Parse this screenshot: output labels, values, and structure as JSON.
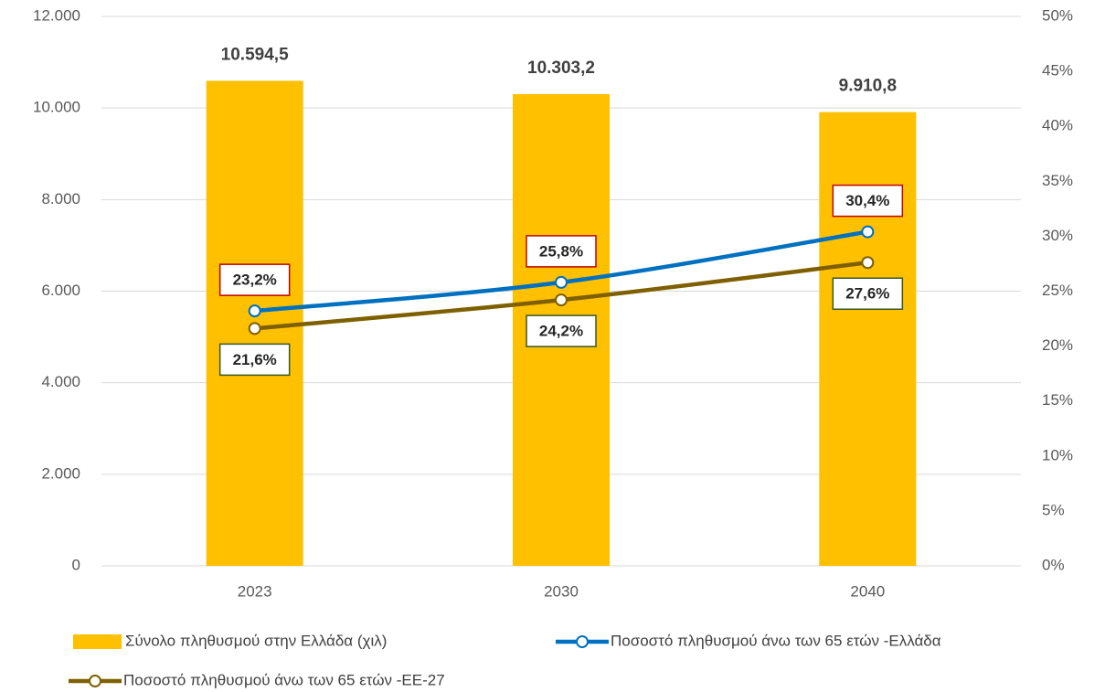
{
  "chart_data": {
    "type": "bar",
    "categories": [
      "2023",
      "2030",
      "2040"
    ],
    "series": [
      {
        "name": "Σύνολο πληθυσμού στην Ελλάδα (χιλ)",
        "type": "bar",
        "color": "#ffc000",
        "values": [
          10594.5,
          10303.2,
          9910.8
        ],
        "value_labels": [
          "10.594,5",
          "10.303,2",
          "9.910,8"
        ]
      },
      {
        "name": "Ποσοστό πληθυσμού άνω των 65 ετών -Ελλάδα",
        "type": "line",
        "axis": "y2",
        "color": "#0070c0",
        "label_border": "#c00000",
        "values": [
          23.2,
          25.8,
          30.4
        ],
        "value_labels": [
          "23,2%",
          "25,8%",
          "30,4%"
        ]
      },
      {
        "name": "Ποσοστό πληθυσμού άνω των 65 ετών -ΕΕ-27",
        "type": "line",
        "axis": "y2",
        "color": "#7f6000",
        "label_border": "#385723",
        "values": [
          21.6,
          24.2,
          27.6
        ],
        "value_labels": [
          "21,6%",
          "24,2%",
          "27,6%"
        ]
      }
    ],
    "ylim": [
      0,
      12000
    ],
    "yticks": [
      0,
      {
        "value": 2000,
        "label": "2.000"
      },
      {
        "value": 4000,
        "label": "4.000"
      },
      {
        "value": 6000,
        "label": "6.000"
      },
      {
        "value": 8000,
        "label": "8.000"
      },
      {
        "value": 10000,
        "label": "10.000"
      },
      {
        "value": 12000,
        "label": "12.000"
      }
    ],
    "y2lim": [
      0,
      50
    ],
    "y2ticks": [
      {
        "value": 0,
        "label": "0%"
      },
      {
        "value": 5,
        "label": "5%"
      },
      {
        "value": 10,
        "label": "10%"
      },
      {
        "value": 15,
        "label": "15%"
      },
      {
        "value": 20,
        "label": "20%"
      },
      {
        "value": 25,
        "label": "25%"
      },
      {
        "value": 30,
        "label": "30%"
      },
      {
        "value": 35,
        "label": "35%"
      },
      {
        "value": 40,
        "label": "40%"
      },
      {
        "value": 45,
        "label": "45%"
      },
      {
        "value": 50,
        "label": "50%"
      }
    ],
    "grid": true
  }
}
